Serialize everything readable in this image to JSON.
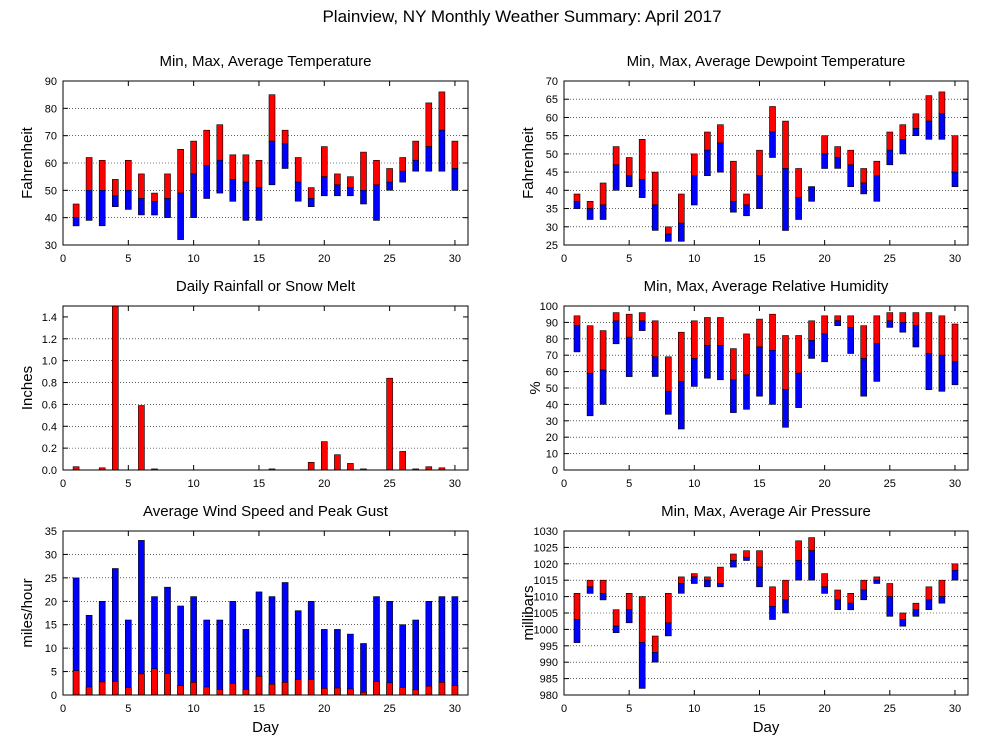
{
  "page": {
    "title": "Plainview, NY Monthly Weather Summary: April 2017"
  },
  "colors": {
    "max_range": "#ff0000",
    "min_range": "#0000ff",
    "grid": "#000000"
  },
  "chart_data": [
    {
      "id": "temp",
      "type": "bar",
      "style": "floating-range",
      "title": "Min, Max, Average Temperature",
      "xlabel": "",
      "ylabel": "Fahrenheit",
      "xlim": [
        0,
        31
      ],
      "ylim": [
        30,
        90
      ],
      "xticks": [
        0,
        5,
        10,
        15,
        20,
        25,
        30
      ],
      "yticks": [
        30,
        40,
        50,
        60,
        70,
        80,
        90
      ],
      "grid": true,
      "series": [
        {
          "name": "Min",
          "values": [
            37,
            39,
            37,
            44,
            43,
            41,
            41,
            40,
            32,
            40,
            47,
            49,
            46,
            39,
            39,
            52,
            58,
            46,
            44,
            48,
            48,
            48,
            45,
            39,
            50,
            53,
            57,
            57,
            57,
            50
          ]
        },
        {
          "name": "Average",
          "values": [
            40,
            50,
            50,
            48,
            50,
            47,
            46,
            47,
            49,
            56,
            59,
            61,
            54,
            53,
            51,
            68,
            67,
            53,
            47,
            55,
            52,
            51,
            50,
            52,
            53,
            57,
            61,
            66,
            72,
            58
          ]
        },
        {
          "name": "Max",
          "values": [
            45,
            62,
            61,
            54,
            61,
            56,
            49,
            56,
            65,
            68,
            72,
            74,
            63,
            63,
            61,
            85,
            72,
            62,
            51,
            66,
            56,
            55,
            64,
            61,
            58,
            62,
            68,
            82,
            86,
            68
          ]
        }
      ]
    },
    {
      "id": "dewpoint",
      "type": "bar",
      "style": "floating-range",
      "title": "Min, Max, Average Dewpoint Temperature",
      "xlabel": "",
      "ylabel": "Fahrenheit",
      "xlim": [
        0,
        31
      ],
      "ylim": [
        25,
        70
      ],
      "xticks": [
        0,
        5,
        10,
        15,
        20,
        25,
        30
      ],
      "yticks": [
        25,
        30,
        35,
        40,
        45,
        50,
        55,
        60,
        65,
        70
      ],
      "grid": true,
      "series": [
        {
          "name": "Min",
          "values": [
            35,
            32,
            32,
            40,
            41,
            38,
            29,
            26,
            26,
            36,
            44,
            45,
            34,
            33,
            35,
            49,
            29,
            32,
            37,
            46,
            46,
            41,
            39,
            37,
            47,
            50,
            55,
            54,
            54,
            41
          ]
        },
        {
          "name": "Average",
          "values": [
            37,
            35,
            36,
            47,
            44,
            43,
            36,
            28,
            31,
            44,
            51,
            53,
            37,
            36,
            44,
            56,
            46,
            38,
            41,
            50,
            49,
            47,
            42,
            44,
            51,
            54,
            57,
            59,
            61,
            45
          ]
        },
        {
          "name": "Max",
          "values": [
            39,
            37,
            42,
            52,
            49,
            54,
            45,
            30,
            39,
            50,
            56,
            58,
            48,
            39,
            51,
            63,
            59,
            46,
            40,
            55,
            52,
            51,
            46,
            48,
            56,
            58,
            61,
            66,
            67,
            55
          ]
        }
      ]
    },
    {
      "id": "rain",
      "type": "bar",
      "title": "Daily Rainfall or Snow Melt",
      "xlabel": "",
      "ylabel": "Inches",
      "xlim": [
        0,
        31
      ],
      "ylim": [
        0,
        1.5
      ],
      "xticks": [
        0,
        5,
        10,
        15,
        20,
        25,
        30
      ],
      "yticks": [
        0,
        0.2,
        0.4,
        0.6,
        0.8,
        1,
        1.2,
        1.4
      ],
      "yticklabels": [
        "0.0",
        "0.2",
        "0.4",
        "0.6",
        "0.8",
        "1.0",
        "1.2",
        "1.4"
      ],
      "grid": true,
      "x": [
        1,
        3,
        4,
        6,
        7,
        16,
        19,
        20,
        21,
        22,
        23,
        25,
        26,
        27,
        28,
        29
      ],
      "values": [
        0.03,
        0.02,
        1.5,
        0.59,
        0.01,
        0.01,
        0.07,
        0.26,
        0.14,
        0.06,
        0.01,
        0.84,
        0.17,
        0.01,
        0.03,
        0.02
      ]
    },
    {
      "id": "humidity",
      "type": "bar",
      "style": "floating-range",
      "title": "Min, Max, Average Relative Humidity",
      "xlabel": "",
      "ylabel": "%",
      "xlim": [
        0,
        31
      ],
      "ylim": [
        0,
        100
      ],
      "xticks": [
        0,
        5,
        10,
        15,
        20,
        25,
        30
      ],
      "yticks": [
        0,
        10,
        20,
        30,
        40,
        50,
        60,
        70,
        80,
        90,
        100
      ],
      "grid": true,
      "series": [
        {
          "name": "Min",
          "values": [
            72,
            33,
            40,
            77,
            57,
            85,
            57,
            34,
            25,
            51,
            56,
            55,
            35,
            37,
            45,
            40,
            26,
            38,
            68,
            66,
            88,
            71,
            45,
            54,
            87,
            84,
            75,
            49,
            48,
            52
          ]
        },
        {
          "name": "Average",
          "values": [
            88,
            59,
            61,
            91,
            81,
            91,
            69,
            48,
            54,
            68,
            76,
            76,
            55,
            58,
            75,
            73,
            49,
            59,
            79,
            83,
            91,
            87,
            68,
            77,
            91,
            90,
            88,
            71,
            70,
            66
          ]
        },
        {
          "name": "Max",
          "values": [
            94,
            88,
            85,
            96,
            95,
            96,
            91,
            69,
            84,
            91,
            93,
            93,
            74,
            83,
            92,
            95,
            82,
            82,
            91,
            94,
            94,
            94,
            88,
            94,
            96,
            96,
            96,
            96,
            94,
            89
          ]
        }
      ]
    },
    {
      "id": "wind",
      "type": "bar",
      "style": "stacked-overlay",
      "title": "Average Wind Speed and Peak Gust",
      "xlabel": "Day",
      "ylabel": "miles/hour",
      "xlim": [
        0,
        31
      ],
      "ylim": [
        0,
        35
      ],
      "xticks": [
        0,
        5,
        10,
        15,
        20,
        25,
        30
      ],
      "yticks": [
        0,
        5,
        10,
        15,
        20,
        25,
        30,
        35
      ],
      "grid": true,
      "series": [
        {
          "name": "Peak Gust",
          "values": [
            25,
            17,
            20,
            27,
            16,
            33,
            21,
            23,
            19,
            21,
            16,
            16,
            20,
            14,
            22,
            21,
            24,
            18,
            20,
            14,
            14,
            13,
            11,
            21,
            20,
            15,
            16,
            20,
            21,
            21
          ]
        },
        {
          "name": "Average Wind Speed",
          "values": [
            5.2,
            1.7,
            2.8,
            2.9,
            1.6,
            4.5,
            5.6,
            4.6,
            2.0,
            2.7,
            1.7,
            1.2,
            2.5,
            1.2,
            4.0,
            2.3,
            2.7,
            3.3,
            3.3,
            1.4,
            1.5,
            1.3,
            0.6,
            2.9,
            2.6,
            1.6,
            1.1,
            1.9,
            2.7,
            2.0
          ]
        }
      ]
    },
    {
      "id": "pressure",
      "type": "bar",
      "style": "floating-range",
      "title": "Min, Max, Average Air Pressure",
      "xlabel": "Day",
      "ylabel": "millibars",
      "xlim": [
        0,
        31
      ],
      "ylim": [
        980,
        1030
      ],
      "xticks": [
        0,
        5,
        10,
        15,
        20,
        25,
        30
      ],
      "yticks": [
        980,
        985,
        990,
        995,
        1000,
        1005,
        1010,
        1015,
        1020,
        1025,
        1030
      ],
      "grid": true,
      "series": [
        {
          "name": "Min",
          "values": [
            996,
            1011,
            1009,
            999,
            1002,
            982,
            990,
            998,
            1011,
            1014,
            1013,
            1013,
            1019,
            1021,
            1013,
            1003,
            1005,
            1015,
            1015,
            1011,
            1006,
            1006,
            1009,
            1014,
            1004,
            1001,
            1004,
            1006,
            1008,
            1015
          ]
        },
        {
          "name": "Average",
          "values": [
            1003,
            1013,
            1011,
            1001,
            1006,
            996,
            993,
            1002,
            1014,
            1016,
            1015,
            1014,
            1021,
            1022,
            1019,
            1007,
            1009,
            1021,
            1024,
            1013,
            1009,
            1008,
            1012,
            1015,
            1010,
            1003,
            1006,
            1009,
            1010,
            1018
          ]
        },
        {
          "name": "Max",
          "values": [
            1011,
            1015,
            1015,
            1006,
            1011,
            1010,
            998,
            1011,
            1016,
            1017,
            1016,
            1019,
            1023,
            1024,
            1024,
            1013,
            1015,
            1027,
            1028,
            1017,
            1012,
            1011,
            1015,
            1016,
            1014,
            1005,
            1008,
            1013,
            1015,
            1020
          ]
        }
      ]
    }
  ]
}
